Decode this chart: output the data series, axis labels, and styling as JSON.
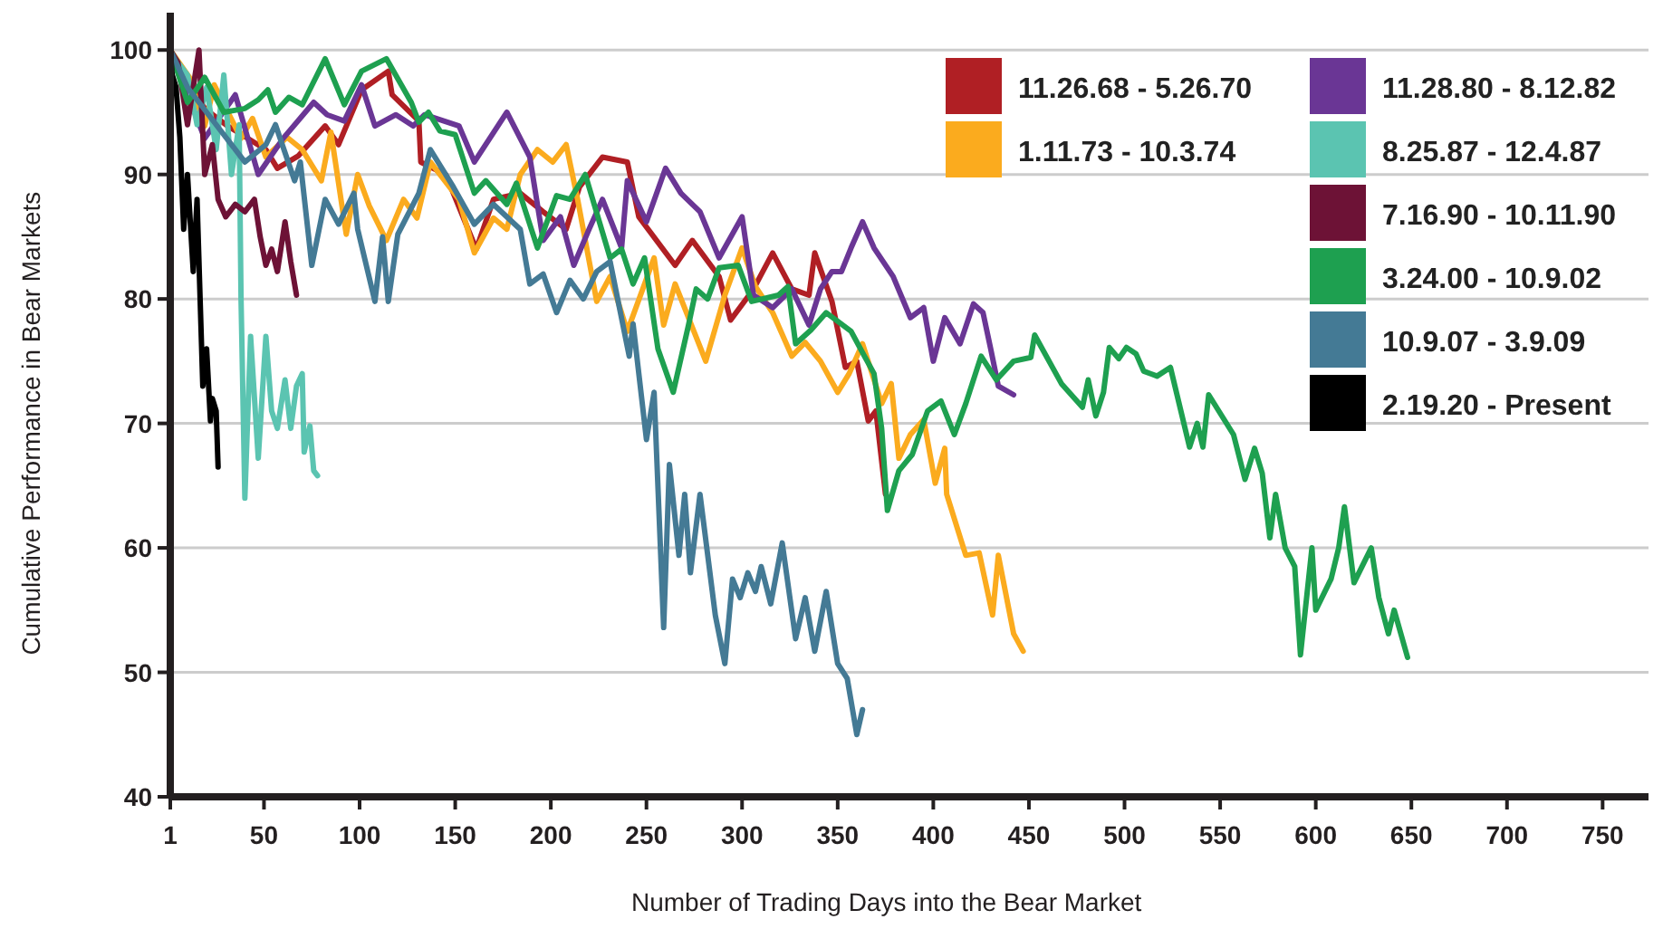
{
  "chart_data": {
    "type": "line",
    "ylabel": "Cumulative Performance in Bear Markets",
    "xlabel": "Number of Trading Days into the Bear Market",
    "xlim": [
      1,
      774
    ],
    "ylim": [
      40,
      103
    ],
    "xticks": [
      1,
      50,
      100,
      150,
      200,
      250,
      300,
      350,
      400,
      450,
      500,
      550,
      600,
      650,
      700,
      750
    ],
    "yticks": [
      40,
      50,
      60,
      70,
      80,
      90,
      100
    ],
    "grid": "y",
    "legend": "top right",
    "line_style": "solid",
    "series": [
      {
        "name": "11.26.68 - 5.26.70",
        "color": "#b01f24",
        "x": [
          1,
          19,
          30,
          51,
          57,
          68,
          82,
          89,
          101,
          115,
          117,
          131,
          132,
          145,
          161,
          170,
          184,
          196,
          208,
          215,
          227,
          240,
          246,
          265,
          274,
          288,
          294,
          306,
          316,
          326,
          335,
          338,
          347,
          354,
          360,
          366,
          370,
          375
        ],
        "values": [
          100,
          95.3,
          94,
          92,
          90.5,
          91.5,
          93.9,
          92.4,
          96.8,
          98.3,
          96.4,
          94.3,
          91,
          90,
          84,
          88,
          88.5,
          87,
          85.6,
          89,
          91.4,
          91,
          86.6,
          82.7,
          84.7,
          81.8,
          78.3,
          80.8,
          83.7,
          80.8,
          80.3,
          83.7,
          79.8,
          74.5,
          75,
          70.2,
          71,
          64.3
        ]
      },
      {
        "name": "1.11.73 - 10.3.74",
        "color": "#fbab1e",
        "x": [
          1,
          11,
          19,
          24,
          38,
          44,
          51,
          62,
          70,
          80,
          85,
          93,
          99,
          105,
          114,
          123,
          130,
          137,
          152,
          160,
          170,
          177,
          184,
          193,
          201,
          208,
          214,
          224,
          231,
          240,
          254,
          259,
          265,
          281,
          291,
          300,
          307,
          316,
          326,
          333,
          341,
          350,
          356,
          363,
          373,
          378,
          382,
          388,
          395,
          401,
          406,
          407,
          417,
          424,
          431,
          434,
          442,
          447
        ],
        "values": [
          100,
          97.8,
          93.9,
          97.2,
          92.9,
          94.5,
          91.4,
          93,
          92,
          89.5,
          93.4,
          85.2,
          90,
          87.5,
          84.7,
          88,
          86.5,
          91,
          88,
          83.7,
          86.5,
          85.6,
          90,
          92,
          91,
          92.4,
          88,
          79.8,
          81.8,
          77.4,
          83.3,
          77.9,
          81.2,
          75,
          80.3,
          84.1,
          81,
          78.9,
          75.4,
          76.5,
          75,
          72.5,
          74,
          76.4,
          71.6,
          73.2,
          67.2,
          69.1,
          70.3,
          65.2,
          68,
          64.3,
          59.4,
          59.6,
          54.6,
          59.4,
          53.1,
          51.7
        ]
      },
      {
        "name": "11.28.80 - 8.12.82",
        "color": "#6a3695",
        "x": [
          1,
          19,
          35,
          47,
          60,
          76,
          83,
          92,
          101,
          108,
          119,
          128,
          134,
          152,
          160,
          177,
          189,
          196,
          205,
          212,
          220,
          227,
          237,
          240,
          250,
          260,
          268,
          278,
          288,
          300,
          306,
          316,
          326,
          335,
          341,
          347,
          352,
          357,
          363,
          369,
          379,
          388,
          395,
          400,
          406,
          414,
          421,
          426,
          430,
          434,
          442
        ],
        "values": [
          100,
          92.9,
          96.4,
          90,
          92.9,
          95.8,
          94.8,
          94.3,
          97.2,
          93.9,
          94.8,
          93.9,
          94.8,
          93.9,
          91,
          95,
          91.4,
          84.7,
          86.6,
          82.7,
          85.6,
          88,
          84.1,
          89.5,
          86.2,
          90.5,
          88.5,
          87,
          83.3,
          86.6,
          80.3,
          79.3,
          80.8,
          77.9,
          80.8,
          82.2,
          82.2,
          84.1,
          86.2,
          84.1,
          81.8,
          78.5,
          79.3,
          75,
          78.5,
          76.4,
          79.6,
          78.9,
          76,
          73,
          72.3
        ]
      },
      {
        "name": "8.25.87 - 12.4.87",
        "color": "#5bc4b1",
        "x": [
          1,
          5,
          10,
          15,
          20,
          25,
          29,
          33,
          37,
          38,
          40,
          43,
          47,
          51,
          54,
          57,
          61,
          64,
          67,
          70,
          71,
          74,
          76,
          78
        ],
        "values": [
          100,
          99,
          98,
          94,
          97,
          92,
          98,
          90,
          94,
          80,
          64,
          77,
          67.2,
          77,
          71,
          69.6,
          73.5,
          69.6,
          73,
          74,
          67.7,
          69.8,
          66.2,
          65.8
        ]
      },
      {
        "name": "7.16.90 - 10.11.90",
        "color": "#6d1236",
        "x": [
          1,
          5,
          10,
          13,
          16,
          19,
          23,
          26,
          30,
          35,
          40,
          45,
          48,
          51,
          54,
          57,
          61,
          64,
          67
        ],
        "values": [
          100,
          99,
          94,
          97,
          100,
          90,
          92.4,
          88,
          86.6,
          87.6,
          87,
          88,
          85,
          82.7,
          84,
          82.2,
          86.2,
          83,
          80.3
        ]
      },
      {
        "name": "3.24.00 - 10.9.02",
        "color": "#1ea050",
        "x": [
          1,
          10,
          19,
          29,
          40,
          47,
          52,
          56,
          63,
          70,
          82,
          92,
          101,
          114,
          127,
          131,
          136,
          142,
          150,
          160,
          166,
          177,
          182,
          193,
          203,
          210,
          218,
          231,
          237,
          243,
          249,
          256,
          264,
          272,
          276,
          282,
          288,
          298,
          305,
          319,
          324,
          328,
          336,
          344,
          357,
          364,
          369,
          373,
          376,
          382,
          389,
          397,
          404,
          411,
          417,
          425,
          433,
          442,
          451,
          453,
          467,
          478,
          481,
          485,
          489,
          492,
          497,
          501,
          506,
          510,
          517,
          524,
          534,
          538,
          541,
          544,
          557,
          563,
          568,
          572,
          576,
          579,
          584,
          589,
          592,
          598,
          600,
          608,
          612,
          615,
          620,
          629,
          633,
          638,
          641,
          648
        ],
        "values": [
          100,
          95.8,
          97.8,
          95,
          95.3,
          96,
          96.8,
          95,
          96.2,
          95.6,
          99.3,
          95.6,
          98.3,
          99.3,
          95.8,
          94.2,
          95,
          93.5,
          93.2,
          88.5,
          89.5,
          87.6,
          89.3,
          84.1,
          88.3,
          88,
          90,
          83.3,
          84,
          81.2,
          83.3,
          76,
          72.5,
          77.9,
          80.8,
          80,
          82.5,
          82.7,
          79.8,
          80.3,
          81,
          76.4,
          77.5,
          78.9,
          77.4,
          75.4,
          74,
          69.6,
          63,
          66.2,
          67.5,
          71,
          71.8,
          69.1,
          71.6,
          75.4,
          73.5,
          75,
          75.3,
          77.1,
          73.2,
          71.3,
          73.5,
          70.6,
          72.5,
          76.1,
          75.2,
          76.1,
          75.6,
          74.2,
          73.8,
          74.5,
          68.1,
          70,
          68.1,
          72.3,
          69.1,
          65.5,
          68,
          66,
          60.8,
          64.3,
          60,
          58.5,
          51.4,
          60,
          55,
          57.5,
          60,
          63.3,
          57.2,
          60,
          56,
          53.1,
          55,
          51.2
        ]
      },
      {
        "name": "10.9.07 - 3.9.09",
        "color": "#447a95",
        "x": [
          1,
          10,
          20,
          30,
          40,
          51,
          56,
          66,
          69,
          75,
          82,
          89,
          97,
          99,
          108,
          112,
          115,
          120,
          131,
          137,
          149,
          160,
          170,
          184,
          189,
          196,
          203,
          210,
          217,
          224,
          231,
          241,
          243,
          250,
          254,
          259,
          262,
          267,
          270,
          273,
          278,
          286,
          291,
          295,
          299,
          303,
          307,
          310,
          315,
          321,
          328,
          333,
          338,
          344,
          350,
          355,
          360,
          363
        ],
        "values": [
          100,
          97,
          95,
          93,
          91,
          92.4,
          94,
          89.5,
          91,
          82.7,
          88,
          86,
          88.5,
          85.6,
          79.8,
          85,
          79.8,
          85.2,
          88.5,
          92,
          89,
          86,
          87.6,
          85.6,
          81.2,
          82,
          78.9,
          81.5,
          80,
          82.2,
          83,
          75.4,
          78,
          68.7,
          72.5,
          53.6,
          66.7,
          59.4,
          64.3,
          58,
          64.3,
          54.6,
          50.7,
          57.5,
          56,
          58,
          56.5,
          58.5,
          55.5,
          60.4,
          52.7,
          56,
          51.7,
          56.5,
          50.7,
          49.5,
          45,
          47
        ]
      },
      {
        "name": "2.19.20 - Present",
        "color": "#000000",
        "x": [
          1,
          2,
          4,
          6,
          8,
          10,
          13,
          15,
          18,
          20,
          22,
          23,
          25,
          26
        ],
        "values": [
          100,
          98,
          97,
          93,
          85.6,
          90,
          82.2,
          88,
          73,
          76,
          70.2,
          72,
          71,
          66.5
        ]
      }
    ]
  }
}
